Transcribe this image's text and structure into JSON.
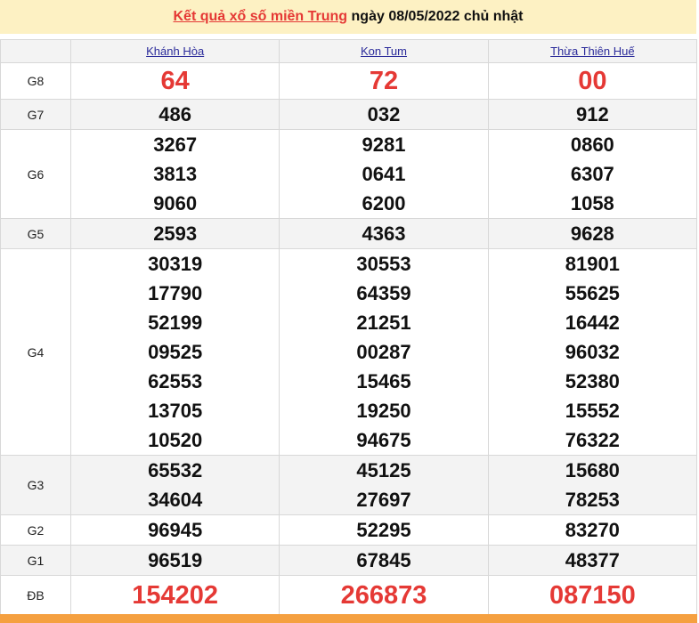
{
  "header": {
    "link": "Kết quả xổ số miền Trung",
    "rest": " ngày 08/05/2022 chủ nhật"
  },
  "provinces": [
    "Khánh Hòa",
    "Kon Tum",
    "Thừa Thiên Huế"
  ],
  "prizes": [
    {
      "label": "G8",
      "big": true,
      "values": [
        [
          "64"
        ],
        [
          "72"
        ],
        [
          "00"
        ]
      ]
    },
    {
      "label": "G7",
      "values": [
        [
          "486"
        ],
        [
          "032"
        ],
        [
          "912"
        ]
      ]
    },
    {
      "label": "G6",
      "values": [
        [
          "3267",
          "3813",
          "9060"
        ],
        [
          "9281",
          "0641",
          "6200"
        ],
        [
          "0860",
          "6307",
          "1058"
        ]
      ]
    },
    {
      "label": "G5",
      "values": [
        [
          "2593"
        ],
        [
          "4363"
        ],
        [
          "9628"
        ]
      ]
    },
    {
      "label": "G4",
      "values": [
        [
          "30319",
          "17790",
          "52199",
          "09525",
          "62553",
          "13705",
          "10520"
        ],
        [
          "30553",
          "64359",
          "21251",
          "00287",
          "15465",
          "19250",
          "94675"
        ],
        [
          "81901",
          "55625",
          "16442",
          "96032",
          "52380",
          "15552",
          "76322"
        ]
      ]
    },
    {
      "label": "G3",
      "values": [
        [
          "65532",
          "34604"
        ],
        [
          "45125",
          "27697"
        ],
        [
          "15680",
          "78253"
        ]
      ]
    },
    {
      "label": "G2",
      "values": [
        [
          "96945"
        ],
        [
          "52295"
        ],
        [
          "83270"
        ]
      ]
    },
    {
      "label": "G1",
      "values": [
        [
          "96519"
        ],
        [
          "67845"
        ],
        [
          "48377"
        ]
      ]
    },
    {
      "label": "ĐB",
      "big": true,
      "values": [
        [
          "154202"
        ],
        [
          "266873"
        ],
        [
          "087150"
        ]
      ]
    }
  ]
}
